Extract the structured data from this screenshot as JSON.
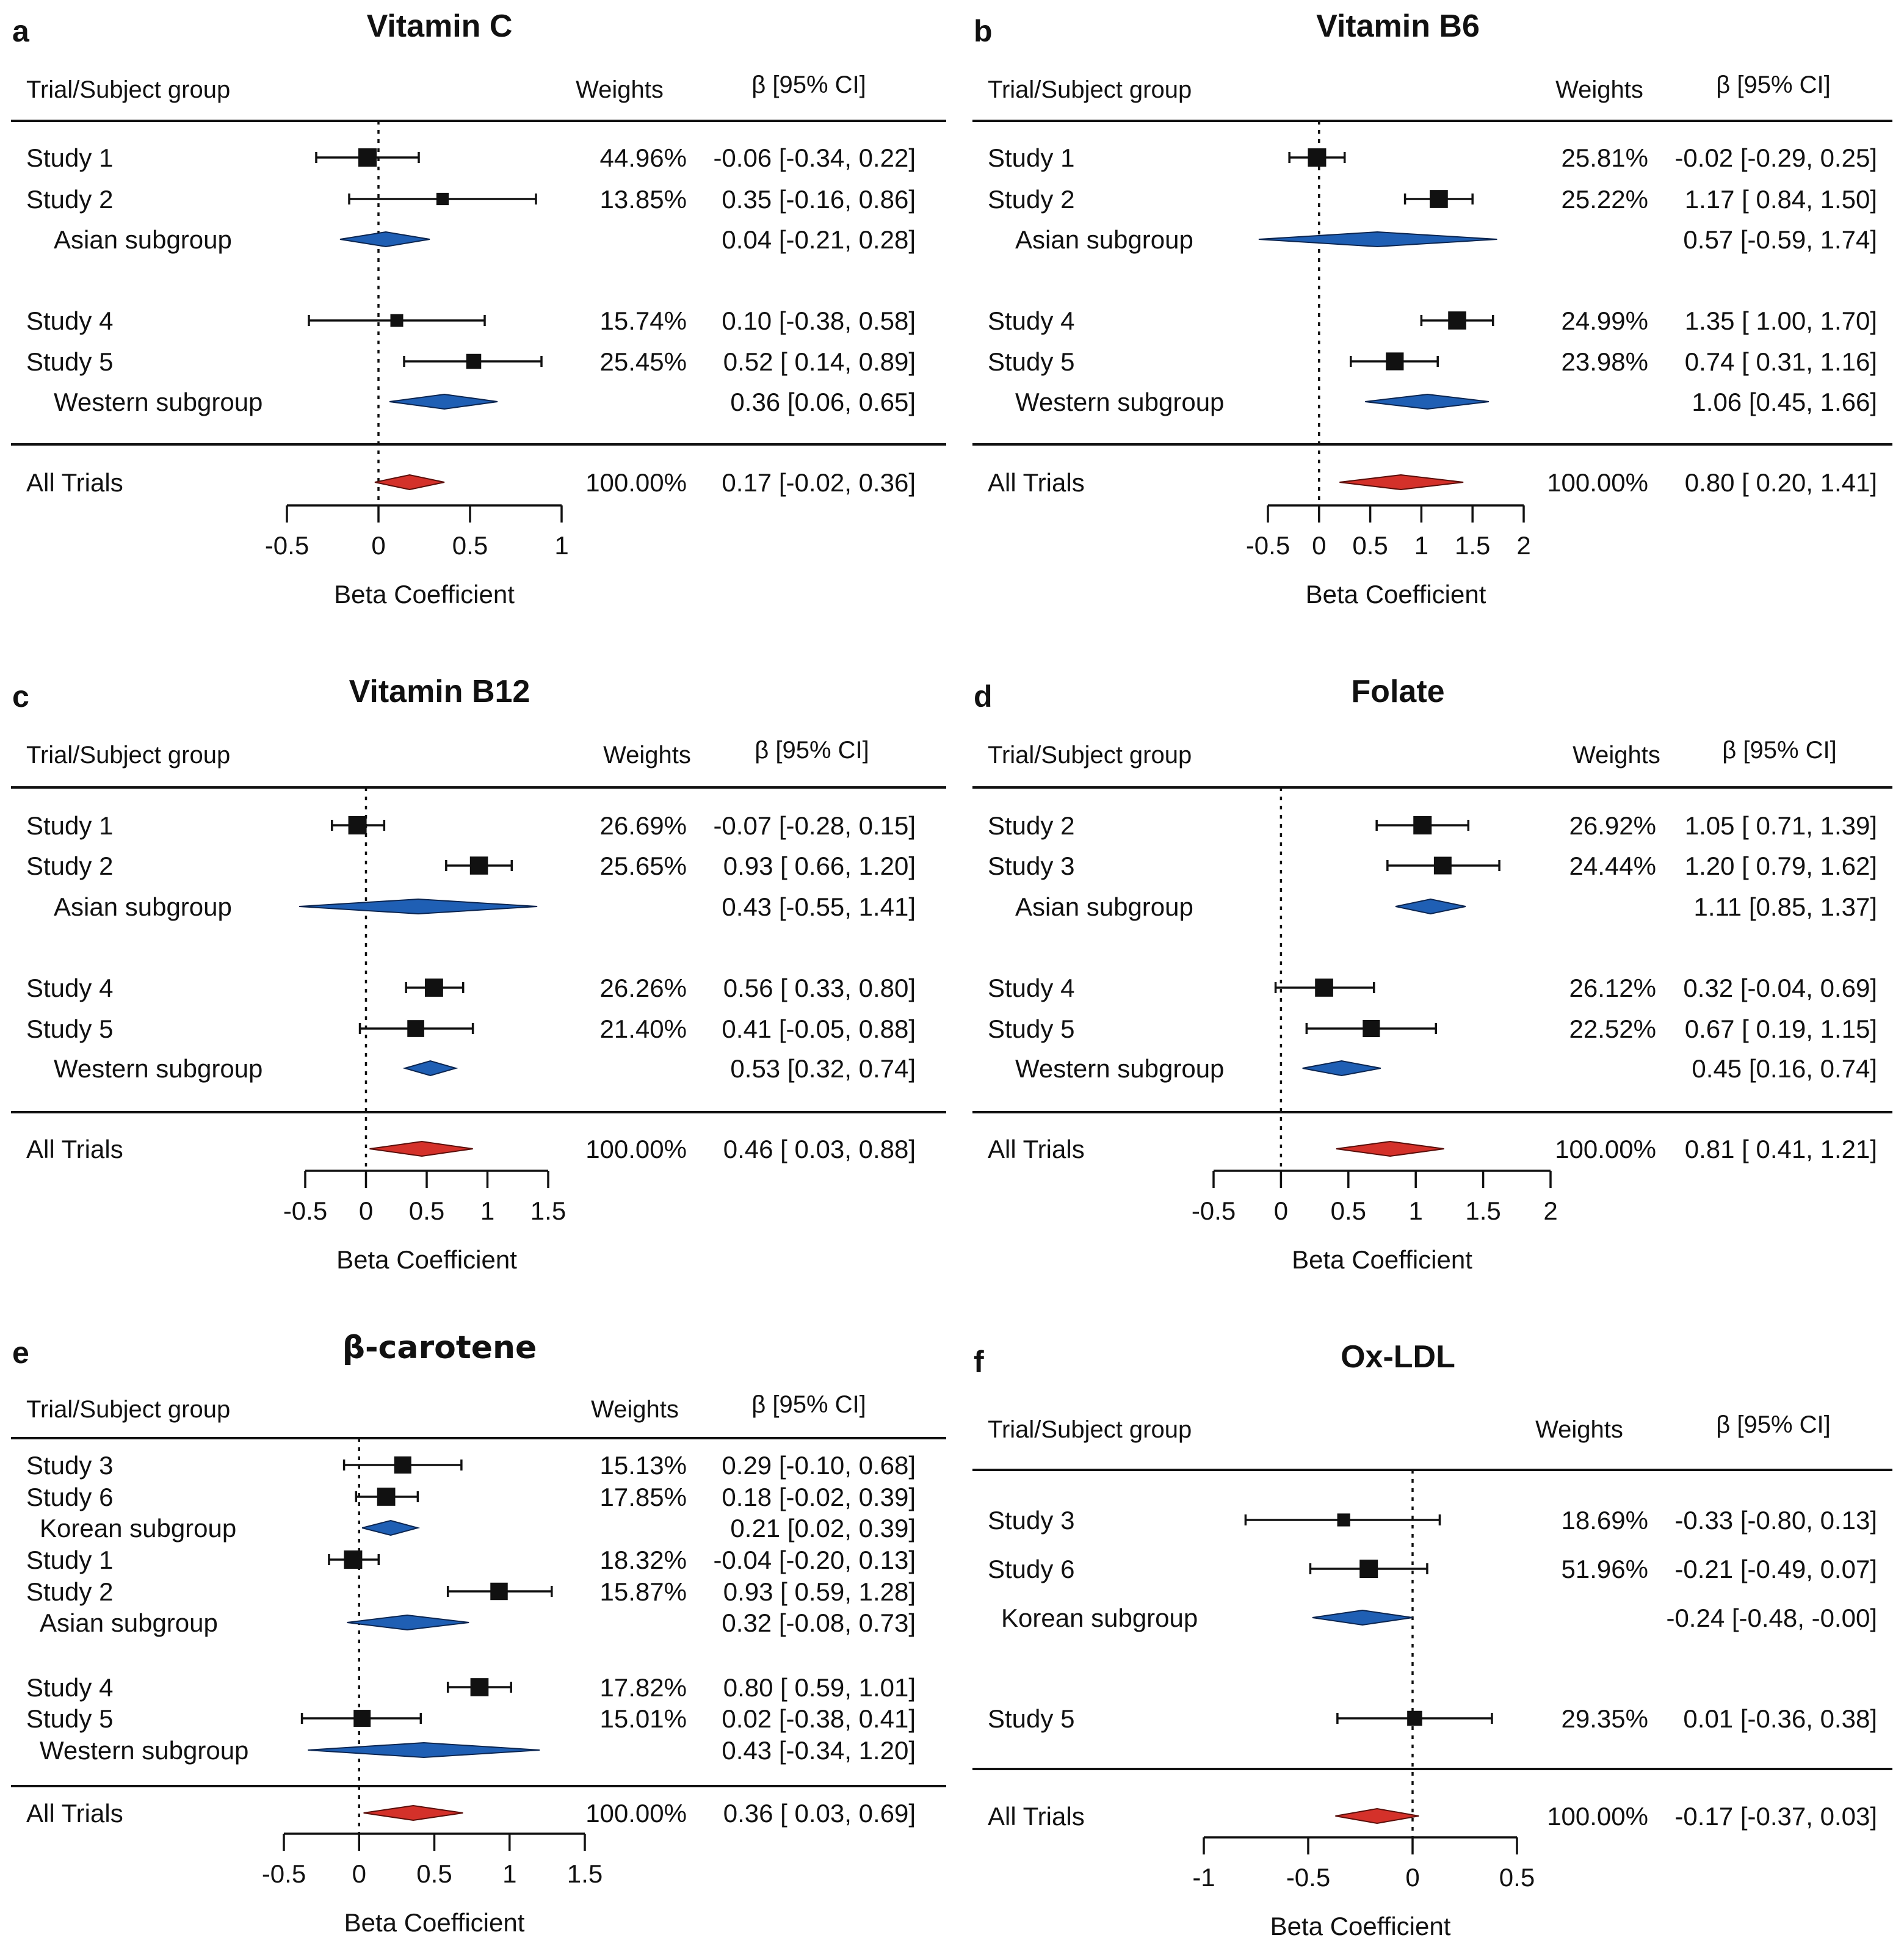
{
  "figure_label": "Forest plots of meta-analysis",
  "colors": {
    "subgroup": "#1f5fb4",
    "overall": "#d4312a",
    "ink": "#111111"
  },
  "chart_data": [
    {
      "type": "forest",
      "panel": "a",
      "title": "Vitamin C",
      "header": {
        "group": "Trial/Subject group",
        "weights": "Weights",
        "ci": "β [95% CI]"
      },
      "xlabel": "Beta Coefficient",
      "xlim": [
        -0.5,
        1
      ],
      "ticks": [
        -0.5,
        0,
        0.5,
        1
      ],
      "tick_labels": [
        "-0.5",
        "0",
        "0.5",
        "1"
      ],
      "rows": [
        {
          "label": "Study 1",
          "kind": "study",
          "est": -0.06,
          "lo": -0.34,
          "hi": 0.22,
          "weight": "44.96%",
          "ci": "-0.06 [-0.34, 0.22]"
        },
        {
          "label": "Study 2",
          "kind": "study",
          "est": 0.35,
          "lo": -0.16,
          "hi": 0.86,
          "weight": "13.85%",
          "ci": "0.35 [-0.16, 0.86]"
        },
        {
          "label": "Asian subgroup",
          "kind": "subgroup",
          "est": 0.04,
          "lo": -0.21,
          "hi": 0.28,
          "weight": "",
          "ci": "0.04 [-0.21, 0.28]"
        },
        {
          "label": "Study 4",
          "kind": "study",
          "est": 0.1,
          "lo": -0.38,
          "hi": 0.58,
          "weight": "15.74%",
          "ci": "0.10 [-0.38, 0.58]"
        },
        {
          "label": "Study 5",
          "kind": "study",
          "est": 0.52,
          "lo": 0.14,
          "hi": 0.89,
          "weight": "25.45%",
          "ci": "0.52 [ 0.14, 0.89]"
        },
        {
          "label": "Western subgroup",
          "kind": "subgroup",
          "est": 0.36,
          "lo": 0.06,
          "hi": 0.65,
          "weight": "",
          "ci": "0.36 [0.06, 0.65]"
        }
      ],
      "overall": {
        "label": "All Trials",
        "est": 0.17,
        "lo": -0.02,
        "hi": 0.36,
        "weight": "100.00%",
        "ci": "0.17 [-0.02, 0.36]"
      }
    },
    {
      "type": "forest",
      "panel": "b",
      "title": "Vitamin B6",
      "header": {
        "group": "Trial/Subject group",
        "weights": "Weights",
        "ci": "β [95% CI]"
      },
      "xlabel": "Beta Coefficient",
      "xlim": [
        -0.5,
        2
      ],
      "ticks": [
        -0.5,
        0,
        0.5,
        1,
        1.5,
        2
      ],
      "tick_labels": [
        "-0.5",
        "0",
        "0.5",
        "1",
        "1.5",
        "2"
      ],
      "rows": [
        {
          "label": "Study 1",
          "kind": "study",
          "est": -0.02,
          "lo": -0.29,
          "hi": 0.25,
          "weight": "25.81%",
          "ci": "-0.02 [-0.29, 0.25]"
        },
        {
          "label": "Study 2",
          "kind": "study",
          "est": 1.17,
          "lo": 0.84,
          "hi": 1.5,
          "weight": "25.22%",
          "ci": "1.17 [ 0.84, 1.50]"
        },
        {
          "label": "Asian subgroup",
          "kind": "subgroup",
          "est": 0.57,
          "lo": -0.59,
          "hi": 1.74,
          "weight": "",
          "ci": "0.57 [-0.59, 1.74]"
        },
        {
          "label": "Study 4",
          "kind": "study",
          "est": 1.35,
          "lo": 1.0,
          "hi": 1.7,
          "weight": "24.99%",
          "ci": "1.35 [ 1.00, 1.70]"
        },
        {
          "label": "Study 5",
          "kind": "study",
          "est": 0.74,
          "lo": 0.31,
          "hi": 1.16,
          "weight": "23.98%",
          "ci": "0.74 [ 0.31, 1.16]"
        },
        {
          "label": "Western subgroup",
          "kind": "subgroup",
          "est": 1.06,
          "lo": 0.45,
          "hi": 1.66,
          "weight": "",
          "ci": "1.06 [0.45, 1.66]"
        }
      ],
      "overall": {
        "label": "All Trials",
        "est": 0.8,
        "lo": 0.2,
        "hi": 1.41,
        "weight": "100.00%",
        "ci": "0.80 [ 0.20, 1.41]"
      }
    },
    {
      "type": "forest",
      "panel": "c",
      "title": "Vitamin B12",
      "header": {
        "group": "Trial/Subject group",
        "weights": "Weights",
        "ci": "β [95% CI]"
      },
      "xlabel": "Beta Coefficient",
      "xlim": [
        -0.5,
        1.5
      ],
      "ticks": [
        -0.5,
        0,
        0.5,
        1,
        1.5
      ],
      "tick_labels": [
        "-0.5",
        "0",
        "0.5",
        "1",
        "1.5"
      ],
      "rows": [
        {
          "label": "Study 1",
          "kind": "study",
          "est": -0.07,
          "lo": -0.28,
          "hi": 0.15,
          "weight": "26.69%",
          "ci": "-0.07 [-0.28, 0.15]"
        },
        {
          "label": "Study 2",
          "kind": "study",
          "est": 0.93,
          "lo": 0.66,
          "hi": 1.2,
          "weight": "25.65%",
          "ci": "0.93 [ 0.66, 1.20]"
        },
        {
          "label": "Asian subgroup",
          "kind": "subgroup",
          "est": 0.43,
          "lo": -0.55,
          "hi": 1.41,
          "weight": "",
          "ci": "0.43 [-0.55, 1.41]"
        },
        {
          "label": "Study 4",
          "kind": "study",
          "est": 0.56,
          "lo": 0.33,
          "hi": 0.8,
          "weight": "26.26%",
          "ci": "0.56 [ 0.33, 0.80]"
        },
        {
          "label": "Study 5",
          "kind": "study",
          "est": 0.41,
          "lo": -0.05,
          "hi": 0.88,
          "weight": "21.40%",
          "ci": "0.41 [-0.05, 0.88]"
        },
        {
          "label": "Western subgroup",
          "kind": "subgroup",
          "est": 0.53,
          "lo": 0.32,
          "hi": 0.74,
          "weight": "",
          "ci": "0.53 [0.32, 0.74]"
        }
      ],
      "overall": {
        "label": "All Trials",
        "est": 0.46,
        "lo": 0.03,
        "hi": 0.88,
        "weight": "100.00%",
        "ci": "0.46 [ 0.03, 0.88]"
      }
    },
    {
      "type": "forest",
      "panel": "d",
      "title": "Folate",
      "header": {
        "group": "Trial/Subject group",
        "weights": "Weights",
        "ci": "β [95% CI]"
      },
      "xlabel": "Beta Coefficient",
      "xlim": [
        -0.5,
        2
      ],
      "ticks": [
        -0.5,
        0,
        0.5,
        1,
        1.5,
        2
      ],
      "tick_labels": [
        "-0.5",
        "0",
        "0.5",
        "1",
        "1.5",
        "2"
      ],
      "rows": [
        {
          "label": "Study 2",
          "kind": "study",
          "est": 1.05,
          "lo": 0.71,
          "hi": 1.39,
          "weight": "26.92%",
          "ci": "1.05 [ 0.71, 1.39]"
        },
        {
          "label": "Study 3",
          "kind": "study",
          "est": 1.2,
          "lo": 0.79,
          "hi": 1.62,
          "weight": "24.44%",
          "ci": "1.20 [ 0.79, 1.62]"
        },
        {
          "label": "Asian subgroup",
          "kind": "subgroup",
          "est": 1.11,
          "lo": 0.85,
          "hi": 1.37,
          "weight": "",
          "ci": "1.11 [0.85, 1.37]"
        },
        {
          "label": "Study 4",
          "kind": "study",
          "est": 0.32,
          "lo": -0.04,
          "hi": 0.69,
          "weight": "26.12%",
          "ci": "0.32 [-0.04, 0.69]"
        },
        {
          "label": "Study 5",
          "kind": "study",
          "est": 0.67,
          "lo": 0.19,
          "hi": 1.15,
          "weight": "22.52%",
          "ci": "0.67 [ 0.19, 1.15]"
        },
        {
          "label": "Western subgroup",
          "kind": "subgroup",
          "est": 0.45,
          "lo": 0.16,
          "hi": 0.74,
          "weight": "",
          "ci": "0.45 [0.16, 0.74]"
        }
      ],
      "overall": {
        "label": "All Trials",
        "est": 0.81,
        "lo": 0.41,
        "hi": 1.21,
        "weight": "100.00%",
        "ci": "0.81 [ 0.41, 1.21]"
      }
    },
    {
      "type": "forest",
      "panel": "e",
      "title": "β-carotene",
      "header": {
        "group": "Trial/Subject group",
        "weights": "Weights",
        "ci": "β [95% CI]"
      },
      "xlabel": "Beta Coefficient",
      "xlim": [
        -0.5,
        1.5
      ],
      "ticks": [
        -0.5,
        0,
        0.5,
        1,
        1.5
      ],
      "tick_labels": [
        "-0.5",
        "0",
        "0.5",
        "1",
        "1.5"
      ],
      "rows": [
        {
          "label": "Study 3",
          "kind": "study",
          "est": 0.29,
          "lo": -0.1,
          "hi": 0.68,
          "weight": "15.13%",
          "ci": "0.29 [-0.10, 0.68]"
        },
        {
          "label": "Study 6",
          "kind": "study",
          "est": 0.18,
          "lo": -0.02,
          "hi": 0.39,
          "weight": "17.85%",
          "ci": "0.18 [-0.02, 0.39]"
        },
        {
          "label": "Korean subgroup",
          "kind": "subgroup",
          "est": 0.21,
          "lo": 0.02,
          "hi": 0.39,
          "weight": "",
          "ci": "0.21 [0.02, 0.39]"
        },
        {
          "label": "Study 1",
          "kind": "study",
          "est": -0.04,
          "lo": -0.2,
          "hi": 0.13,
          "weight": "18.32%",
          "ci": "-0.04 [-0.20, 0.13]"
        },
        {
          "label": "Study 2",
          "kind": "study",
          "est": 0.93,
          "lo": 0.59,
          "hi": 1.28,
          "weight": "15.87%",
          "ci": "0.93 [ 0.59, 1.28]"
        },
        {
          "label": "Asian subgroup",
          "kind": "subgroup",
          "est": 0.32,
          "lo": -0.08,
          "hi": 0.73,
          "weight": "",
          "ci": "0.32 [-0.08, 0.73]"
        },
        {
          "label": "Study 4",
          "kind": "study",
          "est": 0.8,
          "lo": 0.59,
          "hi": 1.01,
          "weight": "17.82%",
          "ci": "0.80 [ 0.59, 1.01]"
        },
        {
          "label": "Study 5",
          "kind": "study",
          "est": 0.02,
          "lo": -0.38,
          "hi": 0.41,
          "weight": "15.01%",
          "ci": "0.02 [-0.38, 0.41]"
        },
        {
          "label": "Western subgroup",
          "kind": "subgroup",
          "est": 0.43,
          "lo": -0.34,
          "hi": 1.2,
          "weight": "",
          "ci": "0.43 [-0.34, 1.20]"
        }
      ],
      "overall": {
        "label": "All Trials",
        "est": 0.36,
        "lo": 0.03,
        "hi": 0.69,
        "weight": "100.00%",
        "ci": "0.36 [ 0.03, 0.69]"
      }
    },
    {
      "type": "forest",
      "panel": "f",
      "title": "Ox-LDL",
      "header": {
        "group": "Trial/Subject group",
        "weights": "Weights",
        "ci": "β [95% CI]"
      },
      "xlabel": "Beta Coefficient",
      "xlim": [
        -1,
        0.5
      ],
      "ticks": [
        -1,
        -0.5,
        0,
        0.5
      ],
      "tick_labels": [
        "-1",
        "-0.5",
        "0",
        "0.5"
      ],
      "rows": [
        {
          "label": "Study 3",
          "kind": "study",
          "est": -0.33,
          "lo": -0.8,
          "hi": 0.13,
          "weight": "18.69%",
          "ci": "-0.33 [-0.80, 0.13]"
        },
        {
          "label": "Study 6",
          "kind": "study",
          "est": -0.21,
          "lo": -0.49,
          "hi": 0.07,
          "weight": "51.96%",
          "ci": "-0.21 [-0.49, 0.07]"
        },
        {
          "label": "Korean subgroup",
          "kind": "subgroup",
          "est": -0.24,
          "lo": -0.48,
          "hi": -0.0,
          "weight": "",
          "ci": "-0.24 [-0.48, -0.00]"
        },
        {
          "label": "Study 5",
          "kind": "study",
          "est": 0.01,
          "lo": -0.36,
          "hi": 0.38,
          "weight": "29.35%",
          "ci": "0.01 [-0.36, 0.38]"
        }
      ],
      "overall": {
        "label": "All Trials",
        "est": -0.17,
        "lo": -0.37,
        "hi": 0.03,
        "weight": "100.00%",
        "ci": "-0.17 [-0.37, 0.03]"
      }
    }
  ]
}
